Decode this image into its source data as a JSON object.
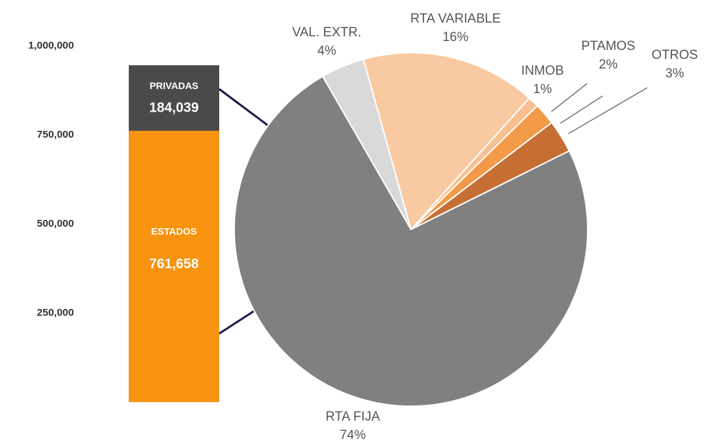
{
  "chart_data": [
    {
      "type": "stacked_bar",
      "ylim": [
        0,
        1000000
      ],
      "yticks": [
        {
          "value": 250000,
          "label": "250,000"
        },
        {
          "value": 500000,
          "label": "500,000"
        },
        {
          "value": 750000,
          "label": "750,000"
        },
        {
          "value": 1000000,
          "label": "1,000,000"
        }
      ],
      "series": [
        {
          "name": "ESTADOS",
          "color": "#f7930f",
          "values": [
            761658
          ],
          "value_labels": [
            "761,658"
          ]
        },
        {
          "name": "PRIVADAS",
          "color": "#4a4a4a",
          "values": [
            184039
          ],
          "value_labels": [
            "184,039"
          ]
        }
      ]
    },
    {
      "type": "pie",
      "categories": [
        "VAL. EXTR.",
        "RTA VARIABLE",
        "INMOB",
        "PTAMOS",
        "OTROS",
        "RTA FIJA"
      ],
      "values": [
        4,
        16,
        1,
        2,
        3,
        74
      ],
      "value_labels": [
        "4%",
        "16%",
        "1%",
        "2%",
        "3%",
        "74%"
      ],
      "colors": [
        "#d9d9d9",
        "#f9c9a1",
        "#f8c091",
        "#f39a48",
        "#c56f35",
        "#808080"
      ]
    }
  ]
}
